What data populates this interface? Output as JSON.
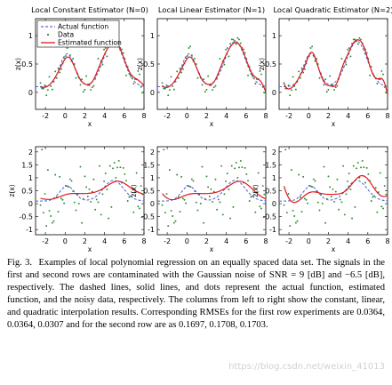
{
  "figure": {
    "caption_label": "Fig. 3.",
    "caption_text": "Examples of local polynomial regression on an equally spaced data set. The signals in the first and second rows are contaminated with the Gaussian noise of SNR = 9 [dB] and −6.5 [dB], respectively. The dashed lines, solid lines, and dots represent the actual function, estimated function, and the noisy data, respectively. The columns from left to right show the constant, linear, and quadratic interpolation results. Corresponding RMSEs for the first row experiments are 0.0364, 0.0364, 0.0307 and for the second row are as 0.1697, 0.1708, 0.1703.",
    "watermark": "https://blog.csdn.net/weixin_41013"
  },
  "colors": {
    "actual": "#5b6bd8",
    "data": "#2e8b2e",
    "estimated": "#e0181c"
  },
  "chart_data": [
    {
      "type": "line",
      "title": "Local Constant Estimator (N=0)",
      "xlabel": "x",
      "ylabel": "z(x)",
      "xlim": [
        -3,
        8
      ],
      "ylim": [
        -0.3,
        1.3
      ],
      "xticks": [
        "-2",
        "0",
        "2",
        "4",
        "6",
        "8"
      ],
      "yticks": [
        "0",
        "0.5",
        "1"
      ],
      "legend": {
        "position": "top-left",
        "entries": [
          "Actual function",
          "Data",
          "Estimated function"
        ]
      },
      "noise_snr_db": 9,
      "rmse": 0.0364
    },
    {
      "type": "line",
      "title": "Local Linear Estimator (N=1)",
      "xlabel": "x",
      "ylabel": "z(x)",
      "xlim": [
        -3,
        8
      ],
      "ylim": [
        -0.3,
        1.3
      ],
      "xticks": [
        "-2",
        "0",
        "2",
        "4",
        "6",
        "8"
      ],
      "yticks": [
        "0",
        "0.5",
        "1"
      ],
      "noise_snr_db": 9,
      "rmse": 0.0364
    },
    {
      "type": "line",
      "title": "Local Quadratic Estimator (N=2)",
      "xlabel": "x",
      "ylabel": "z(x)",
      "xlim": [
        -3,
        8
      ],
      "ylim": [
        -0.3,
        1.3
      ],
      "xticks": [
        "-2",
        "0",
        "2",
        "4",
        "6",
        "8"
      ],
      "yticks": [
        "0",
        "0.5",
        "1"
      ],
      "noise_snr_db": 9,
      "rmse": 0.0307
    },
    {
      "type": "line",
      "title": "",
      "xlabel": "x",
      "ylabel": "z(x)",
      "xlim": [
        -3,
        8
      ],
      "ylim": [
        -1.2,
        2.2
      ],
      "xticks": [
        "-2",
        "0",
        "2",
        "4",
        "6",
        "8"
      ],
      "yticks": [
        "-1",
        "-0.5",
        "0",
        "0.5",
        "1",
        "1.5",
        "2"
      ],
      "noise_snr_db": -6.5,
      "rmse": 0.1697
    },
    {
      "type": "line",
      "title": "",
      "xlabel": "x",
      "ylabel": "z(x)",
      "xlim": [
        -3,
        8
      ],
      "ylim": [
        -1.2,
        2.2
      ],
      "xticks": [
        "-2",
        "0",
        "2",
        "4",
        "6",
        "8"
      ],
      "yticks": [
        "-1",
        "-0.5",
        "0",
        "0.5",
        "1",
        "1.5",
        "2"
      ],
      "noise_snr_db": -6.5,
      "rmse": 0.1708
    },
    {
      "type": "line",
      "title": "",
      "xlabel": "x",
      "ylabel": "z(x)",
      "xlim": [
        -3,
        8
      ],
      "ylim": [
        -1.2,
        2.2
      ],
      "xticks": [
        "-2",
        "0",
        "2",
        "4",
        "6",
        "8"
      ],
      "yticks": [
        "-1",
        "-0.5",
        "0",
        "0.5",
        "1",
        "1.5",
        "2"
      ],
      "noise_snr_db": -6.5,
      "rmse": 0.1703
    }
  ]
}
